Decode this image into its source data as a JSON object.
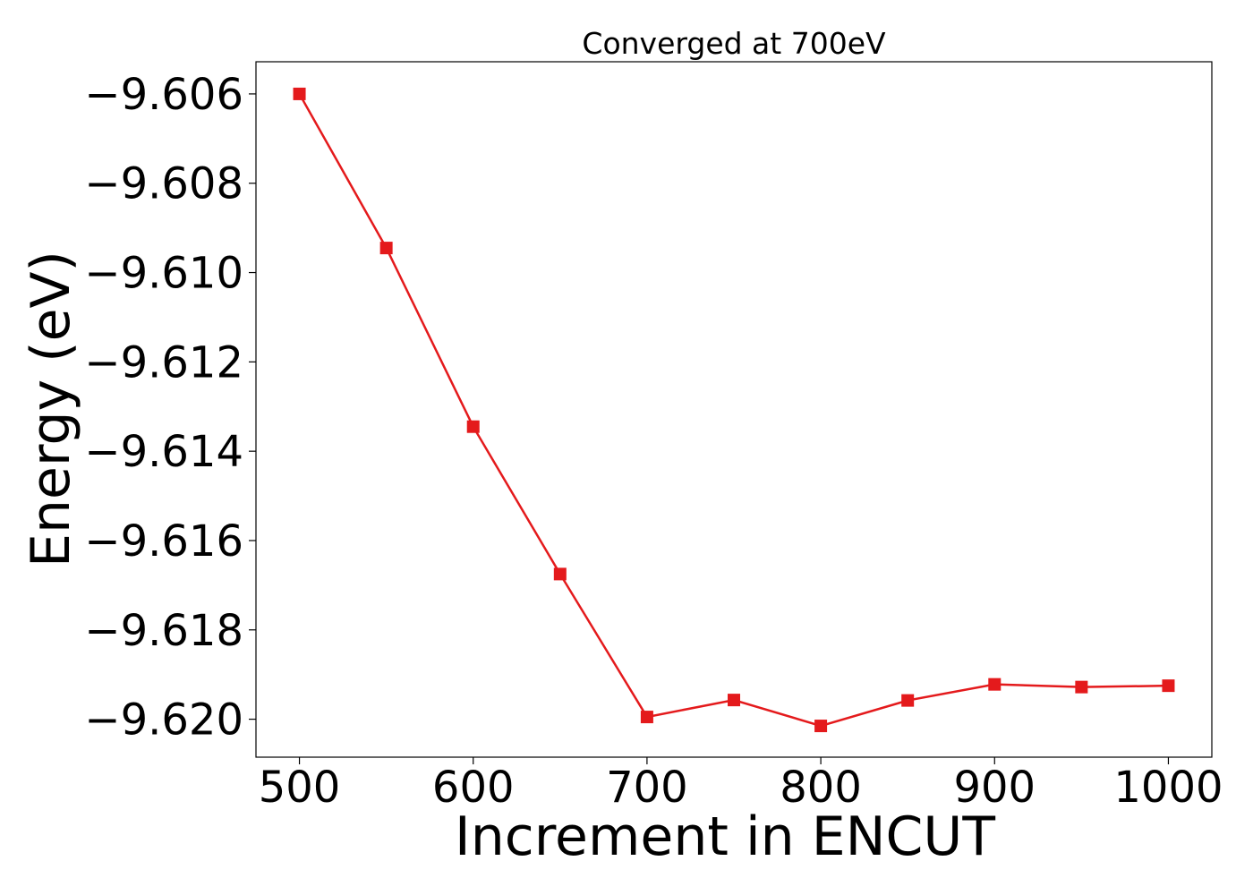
{
  "chart_data": {
    "type": "line",
    "title": "Converged at 700eV",
    "xlabel": "Increment in ENCUT",
    "ylabel": "Energy (eV)",
    "x": [
      500,
      550,
      600,
      650,
      700,
      750,
      800,
      850,
      900,
      950,
      1000
    ],
    "series": [
      {
        "values": [
          -9.606,
          -9.60945,
          -9.61345,
          -9.61675,
          -9.61995,
          -9.61957,
          -9.62015,
          -9.61958,
          -9.61922,
          -9.61928,
          -9.61925
        ],
        "color": "#e41a1c",
        "marker": "square"
      }
    ],
    "xticks": [
      500,
      600,
      700,
      800,
      900,
      1000
    ],
    "xtick_labels": [
      "500",
      "600",
      "700",
      "800",
      "900",
      "1000"
    ],
    "yticks": [
      -9.606,
      -9.608,
      -9.61,
      -9.612,
      -9.614,
      -9.616,
      -9.618,
      -9.62
    ],
    "ytick_labels": [
      "−9.606",
      "−9.608",
      "−9.610",
      "−9.612",
      "−9.614",
      "−9.616",
      "−9.618",
      "−9.620"
    ],
    "xlim": [
      475,
      1025
    ],
    "ylim": [
      -9.62085,
      -9.60528
    ],
    "grid": false
  }
}
